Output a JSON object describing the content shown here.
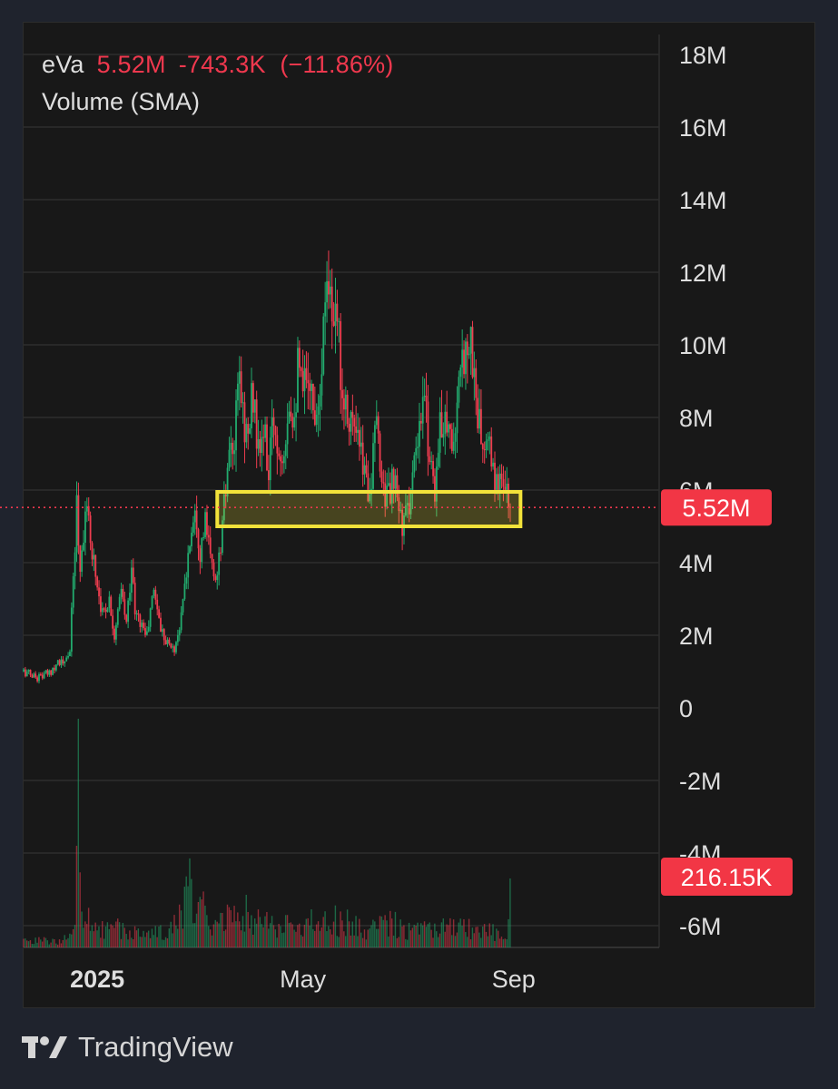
{
  "legend": {
    "symbol": "eVa",
    "price": "5.52M",
    "change": "-743.3K",
    "change_pct": "(−11.86%)",
    "indicator": "Volume (SMA)"
  },
  "price_badge": {
    "label": "5.52M",
    "color": "#f23645"
  },
  "volume_badge": {
    "label": "216.15K",
    "color": "#f23645"
  },
  "brand": {
    "name": "TradingView"
  },
  "colors": {
    "up": "#22ab6e",
    "down": "#ef3d4f",
    "highlight": "#f2e23a"
  },
  "chart_data": {
    "type": "candlestick",
    "y_ticks": [
      "18M",
      "16M",
      "14M",
      "12M",
      "10M",
      "8M",
      "6M",
      "4M",
      "2M",
      "0",
      "-2M",
      "-4M",
      "-6M"
    ],
    "y_tick_values": [
      18,
      16,
      14,
      12,
      10,
      8,
      6,
      4,
      2,
      0,
      -2,
      -4,
      -6
    ],
    "x_ticks": [
      {
        "label": "2025",
        "day": 43,
        "bold": true
      },
      {
        "label": "May",
        "day": 163,
        "bold": false
      },
      {
        "label": "Sep",
        "day": 286,
        "bold": false
      }
    ],
    "x_range_days": [
      0,
      390
    ],
    "y_range_millions": [
      -6.6,
      18.2
    ],
    "last_price_millions": 5.52,
    "price_line": "dotted",
    "highlight_zone_millions": [
      5.0,
      5.95
    ],
    "highlight_zone_days": [
      113,
      290
    ],
    "close_path": [
      [
        0,
        1.0
      ],
      [
        8,
        0.85
      ],
      [
        15,
        0.95
      ],
      [
        20,
        1.3
      ],
      [
        24,
        1.2
      ],
      [
        27,
        1.6
      ],
      [
        30,
        4.5
      ],
      [
        31,
        5.6
      ],
      [
        33,
        3.8
      ],
      [
        36,
        5.5
      ],
      [
        40,
        4.4
      ],
      [
        43,
        3.4
      ],
      [
        46,
        2.6
      ],
      [
        50,
        3.0
      ],
      [
        53,
        2.0
      ],
      [
        57,
        3.2
      ],
      [
        60,
        2.3
      ],
      [
        63,
        4.0
      ],
      [
        65,
        2.6
      ],
      [
        69,
        2.3
      ],
      [
        72,
        2.0
      ],
      [
        76,
        3.3
      ],
      [
        80,
        2.2
      ],
      [
        84,
        1.8
      ],
      [
        88,
        1.6
      ],
      [
        92,
        2.5
      ],
      [
        97,
        4.6
      ],
      [
        100,
        5.7
      ],
      [
        103,
        4.3
      ],
      [
        106,
        5.1
      ],
      [
        110,
        3.8
      ],
      [
        113,
        3.6
      ],
      [
        116,
        5.0
      ],
      [
        119,
        6.5
      ],
      [
        123,
        7.2
      ],
      [
        126,
        9.2
      ],
      [
        128,
        8.1
      ],
      [
        131,
        7.4
      ],
      [
        134,
        8.8
      ],
      [
        137,
        6.9
      ],
      [
        140,
        7.6
      ],
      [
        143,
        6.5
      ],
      [
        146,
        8.0
      ],
      [
        149,
        7.0
      ],
      [
        152,
        7.4
      ],
      [
        155,
        8.6
      ],
      [
        158,
        8.2
      ],
      [
        160,
        9.3
      ],
      [
        163,
        8.5
      ],
      [
        166,
        9.6
      ],
      [
        169,
        8.1
      ],
      [
        172,
        8.7
      ],
      [
        175,
        10.3
      ],
      [
        177,
        12.5
      ],
      [
        179,
        11.5
      ],
      [
        181,
        10.0
      ],
      [
        183,
        10.8
      ],
      [
        186,
        8.8
      ],
      [
        190,
        8.2
      ],
      [
        194,
        7.4
      ],
      [
        198,
        6.7
      ],
      [
        202,
        6.0
      ],
      [
        206,
        7.7
      ],
      [
        209,
        6.4
      ],
      [
        212,
        5.8
      ],
      [
        216,
        6.2
      ],
      [
        219,
        5.4
      ],
      [
        222,
        5.0
      ],
      [
        226,
        6.0
      ],
      [
        230,
        7.1
      ],
      [
        234,
        8.5
      ],
      [
        237,
        7.0
      ],
      [
        240,
        6.1
      ],
      [
        243,
        7.6
      ],
      [
        246,
        8.3
      ],
      [
        249,
        7.4
      ],
      [
        252,
        7.6
      ],
      [
        255,
        9.0
      ],
      [
        258,
        10.3
      ],
      [
        261,
        10.0
      ],
      [
        264,
        8.6
      ],
      [
        267,
        7.3
      ],
      [
        270,
        7.1
      ],
      [
        273,
        6.9
      ],
      [
        276,
        6.0
      ],
      [
        278,
        6.5
      ],
      [
        280,
        6.3
      ],
      [
        282,
        5.85
      ],
      [
        284,
        5.52
      ]
    ],
    "volume_path": [
      [
        0,
        0.2
      ],
      [
        20,
        0.2
      ],
      [
        30,
        0.5
      ],
      [
        31,
        2.5
      ],
      [
        32,
        5.8
      ],
      [
        33,
        1.6
      ],
      [
        34,
        0.9
      ],
      [
        40,
        0.7
      ],
      [
        50,
        0.5
      ],
      [
        60,
        0.6
      ],
      [
        70,
        0.4
      ],
      [
        80,
        0.45
      ],
      [
        92,
        0.9
      ],
      [
        97,
        1.9
      ],
      [
        100,
        1.4
      ],
      [
        110,
        0.8
      ],
      [
        116,
        1.1
      ],
      [
        120,
        0.9
      ],
      [
        126,
        1.4
      ],
      [
        135,
        0.8
      ],
      [
        145,
        0.8
      ],
      [
        155,
        0.6
      ],
      [
        165,
        0.7
      ],
      [
        175,
        0.9
      ],
      [
        185,
        0.8
      ],
      [
        195,
        0.6
      ],
      [
        205,
        0.6
      ],
      [
        215,
        0.8
      ],
      [
        225,
        0.5
      ],
      [
        235,
        0.5
      ],
      [
        245,
        0.6
      ],
      [
        255,
        0.6
      ],
      [
        265,
        0.5
      ],
      [
        275,
        0.45
      ],
      [
        280,
        0.5
      ],
      [
        283,
        0.6
      ],
      [
        284,
        1.25
      ]
    ]
  }
}
